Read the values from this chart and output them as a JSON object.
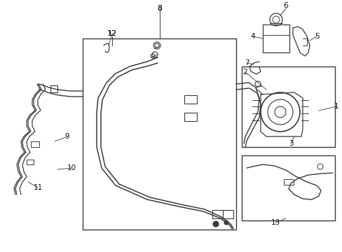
{
  "bg_color": "#ffffff",
  "line_color": "#3a3a3a",
  "fig_width": 4.89,
  "fig_height": 3.6,
  "dpi": 100
}
